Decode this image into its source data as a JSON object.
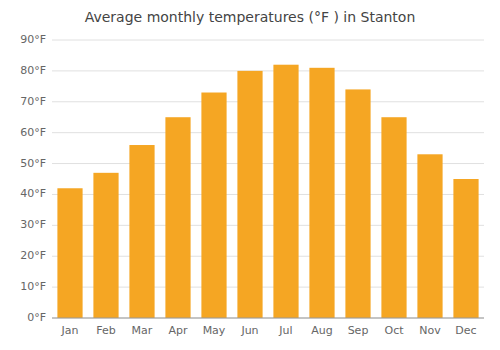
{
  "chart_data": {
    "type": "bar",
    "title": "Average monthly temperatures (°F ) in Stanton",
    "categories": [
      "Jan",
      "Feb",
      "Mar",
      "Apr",
      "May",
      "Jun",
      "Jul",
      "Aug",
      "Sep",
      "Oct",
      "Nov",
      "Dec"
    ],
    "values": [
      42,
      47,
      56,
      65,
      73,
      80,
      82,
      81,
      74,
      65,
      53,
      45
    ],
    "color": "#F5A623",
    "ylim": [
      0,
      90
    ],
    "yticks": [
      {
        "value": 0,
        "label": "0°F"
      },
      {
        "value": 10,
        "label": "10°F"
      },
      {
        "value": 20,
        "label": "20°F"
      },
      {
        "value": 30,
        "label": "30°F"
      },
      {
        "value": 40,
        "label": "40°F"
      },
      {
        "value": 50,
        "label": "50°F"
      },
      {
        "value": 60,
        "label": "60°F"
      },
      {
        "value": 70,
        "label": "70°F"
      },
      {
        "value": 80,
        "label": "80°F"
      },
      {
        "value": 90,
        "label": "90°F"
      }
    ],
    "grid": true
  }
}
